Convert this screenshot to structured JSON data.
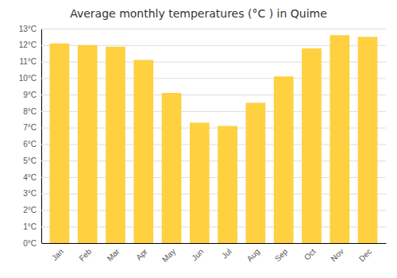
{
  "chart_data": {
    "type": "bar",
    "title": "Average monthly temperatures (°C ) in Quime",
    "categories": [
      "Jan",
      "Feb",
      "Mar",
      "Apr",
      "May",
      "Jun",
      "Jul",
      "Aug",
      "Sep",
      "Oct",
      "Nov",
      "Dec"
    ],
    "values": [
      12.1,
      12.0,
      11.9,
      11.1,
      9.1,
      7.3,
      7.1,
      8.5,
      10.1,
      11.8,
      12.6,
      12.5
    ],
    "color": "#FFD040",
    "ylim": [
      0,
      13
    ],
    "yticks": [
      {
        "value": 0,
        "label": "0°C"
      },
      {
        "value": 1,
        "label": "1°C"
      },
      {
        "value": 2,
        "label": "2°C"
      },
      {
        "value": 3,
        "label": "3°C"
      },
      {
        "value": 4,
        "label": "4°C"
      },
      {
        "value": 5,
        "label": "5°C"
      },
      {
        "value": 6,
        "label": "6°C"
      },
      {
        "value": 7,
        "label": "7°C"
      },
      {
        "value": 8,
        "label": "8°C"
      },
      {
        "value": 9,
        "label": "9°C"
      },
      {
        "value": 10,
        "label": "10°C"
      },
      {
        "value": 11,
        "label": "11°C"
      },
      {
        "value": 12,
        "label": "12°C"
      },
      {
        "value": 13,
        "label": "13°C"
      }
    ],
    "grid": true
  }
}
